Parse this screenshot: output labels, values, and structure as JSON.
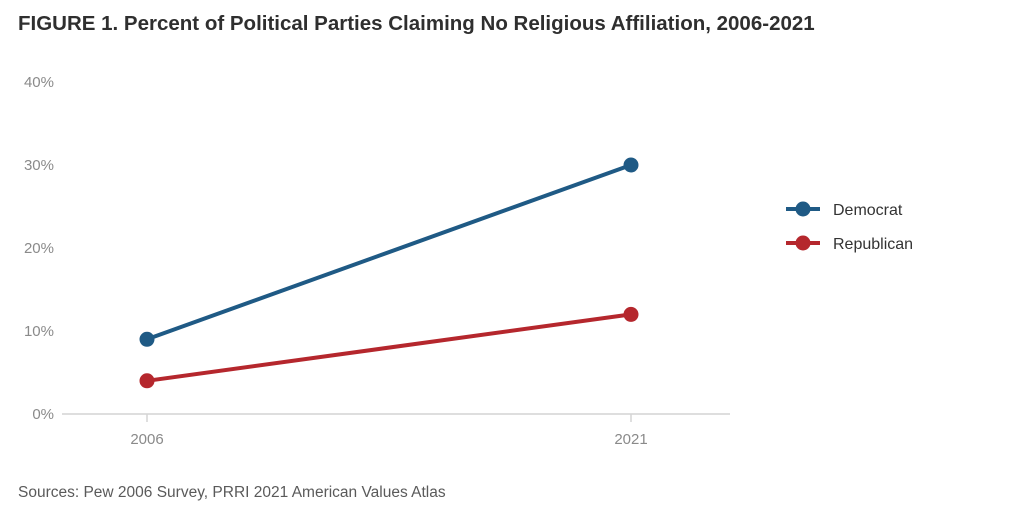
{
  "title": "FIGURE 1. Percent of Political Parties Claiming No Religious Affiliation, 2006-2021",
  "source": "Sources: Pew 2006 Survey, PRRI 2021 American Values Atlas",
  "chart_data": {
    "type": "line",
    "title": "FIGURE 1. Percent of Political Parties Claiming No Religious Affiliation, 2006-2021",
    "x": [
      "2006",
      "2021"
    ],
    "yticks": [
      "0%",
      "10%",
      "20%",
      "30%",
      "40%"
    ],
    "ylim": [
      0,
      40
    ],
    "grid": false,
    "legend": "right",
    "series": [
      {
        "name": "Democrat",
        "values": [
          9,
          30
        ],
        "color": "#1f5a85"
      },
      {
        "name": "Republican",
        "values": [
          4,
          12
        ],
        "color": "#b5272d"
      }
    ]
  }
}
